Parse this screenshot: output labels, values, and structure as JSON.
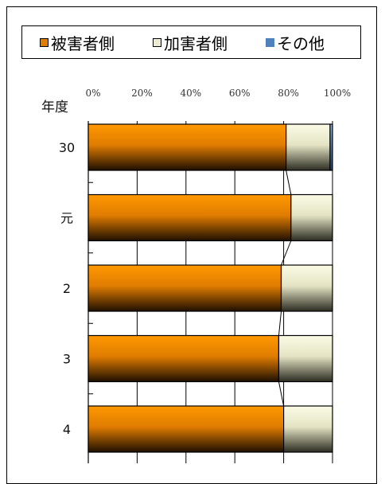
{
  "chart_data": {
    "type": "bar",
    "orientation": "horizontal",
    "stacked": true,
    "category_axis_label": "年度",
    "categories": [
      "30",
      "元",
      "2",
      "3",
      "4"
    ],
    "series": [
      {
        "name": "被害者側",
        "color": "#e07c00",
        "values": [
          81,
          83,
          79,
          78,
          80
        ]
      },
      {
        "name": "加害者側",
        "color": "#ecebcf",
        "values": [
          18,
          17,
          21,
          22,
          20
        ]
      },
      {
        "name": "その他",
        "color": "#4f81bd",
        "values": [
          1,
          0,
          0,
          0,
          0
        ]
      }
    ],
    "x_ticks": [
      "0%",
      "20%",
      "40%",
      "60%",
      "80%",
      "100%"
    ],
    "xlim": [
      0,
      100
    ],
    "series_lines": true,
    "legend_position": "top"
  }
}
